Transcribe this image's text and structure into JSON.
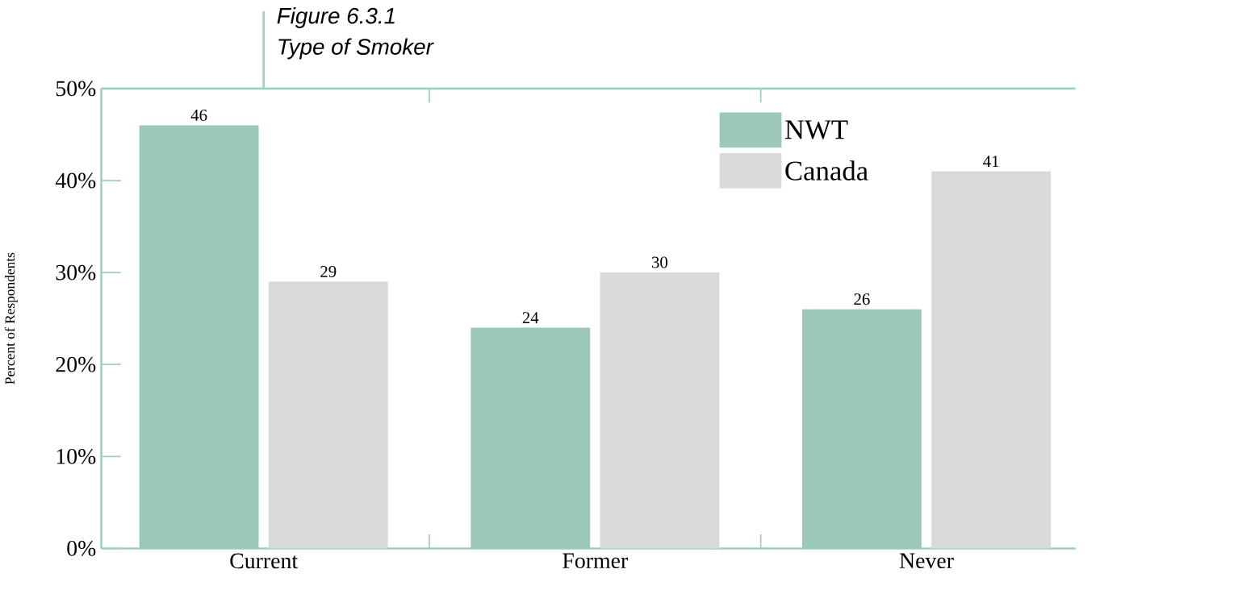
{
  "chart_data": {
    "type": "bar",
    "title": "Figure 6.3.1",
    "subtitle": "Type of Smoker",
    "ylabel": "Percent of Respondents",
    "categories": [
      "Current",
      "Former",
      "Never"
    ],
    "series": [
      {
        "name": "NWT",
        "color": "#9cc8bc",
        "values": [
          46,
          24,
          26
        ]
      },
      {
        "name": "Canada",
        "color": "#d9d9d9",
        "values": [
          29,
          30,
          41
        ]
      }
    ],
    "ylim": [
      0,
      50
    ],
    "yticks": [
      {
        "value": 0,
        "label": "0%"
      },
      {
        "value": 10,
        "label": "10%"
      },
      {
        "value": 20,
        "label": "20%"
      },
      {
        "value": 30,
        "label": "30%"
      },
      {
        "value": 40,
        "label": "40%"
      },
      {
        "value": 50,
        "label": "50%"
      }
    ],
    "legend": "top right",
    "data_labels": true
  }
}
